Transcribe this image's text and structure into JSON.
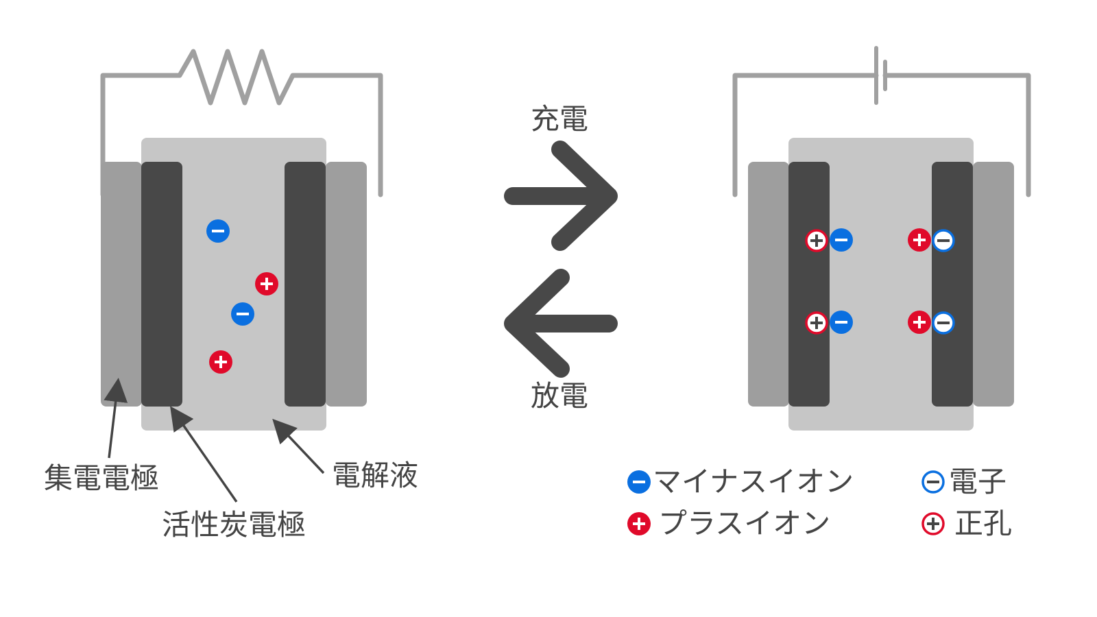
{
  "colors": {
    "wire": "#a0a0a0",
    "electrolyte": "#c6c6c6",
    "collector": "#9e9e9e",
    "carbon": "#484848",
    "arrow": "#484848",
    "minus_ion": "#0a6fe0",
    "plus_ion": "#e00a2a",
    "text": "#444444"
  },
  "labels": {
    "charge": "充電",
    "discharge": "放電",
    "collector_electrode": "集電電極",
    "activated_carbon_electrode": "活性炭電極",
    "electrolyte": "電解液"
  },
  "legend": {
    "minus_ion": "マイナスイオン",
    "plus_ion": "プラスイオン",
    "electron": "電子",
    "hole": "正孔"
  },
  "icons": {
    "resistor": "resistor-icon",
    "battery": "battery-icon",
    "charge_arrow": "arrow-right-icon",
    "discharge_arrow": "arrow-left-icon"
  }
}
